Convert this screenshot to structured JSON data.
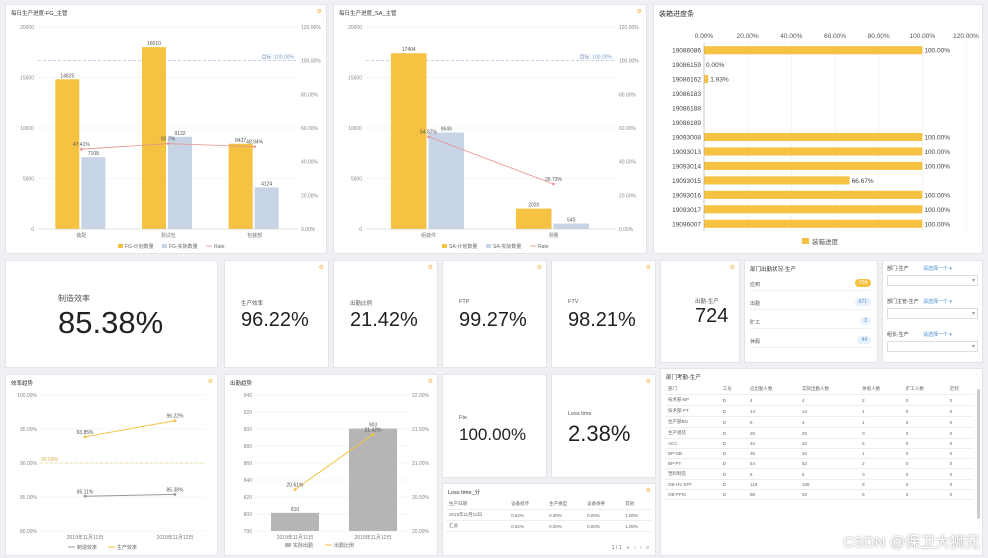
{
  "panels": {
    "fg": {
      "title": "每日生产进度-FG_主管"
    },
    "sa": {
      "title": "每日生产进度_SA_主管"
    },
    "progress": {
      "title": "装箱进度条"
    },
    "eff_trend": {
      "title": "效率趋势"
    },
    "rate_trend": {
      "title": "出勤趋势"
    },
    "loss": {
      "title": "Loss time_分"
    },
    "dept_att": {
      "title": "部门出勤状况-生产"
    },
    "dept_attend_table": {
      "title": "部门考勤-生产"
    }
  },
  "kpis": {
    "main": {
      "label": "制造效率",
      "value": "85.38%"
    },
    "prod_eff": {
      "label": "生产效率",
      "value": "96.22%"
    },
    "attendance": {
      "label": "出勤比例",
      "value": "21.42%"
    },
    "ftp": {
      "label": "FTP",
      "value": "99.27%"
    },
    "ftv": {
      "label": "FTV",
      "value": "98.21%"
    },
    "hours": {
      "label": "出勤-生产",
      "value": "724"
    },
    "fte": {
      "label": "Fte",
      "value": "100.00%"
    },
    "loss_time": {
      "label": "Loss time",
      "value": "2.38%"
    }
  },
  "dept_status": {
    "rows": [
      {
        "label": "应到",
        "value": "724"
      },
      {
        "label": "出勤",
        "value": "671"
      },
      {
        "label": "旷工",
        "value": "3"
      },
      {
        "label": "休假",
        "value": "44"
      }
    ]
  },
  "filters": [
    {
      "label": "部门-生产",
      "selected": "请选择一个 ▾"
    },
    {
      "label": "部门主管-生产",
      "selected": "请选择一个 ▾"
    },
    {
      "label": "组长-生产",
      "selected": "请选择一个 ▾"
    }
  ],
  "dept_table": {
    "headers": [
      "部门",
      "工号",
      "应出勤人数",
      "实际出勤人数",
      "休假人数",
      "旷工人数",
      "迟到"
    ],
    "rows": [
      [
        "技术部-BP",
        "D",
        "4",
        "4",
        "2",
        "0",
        "0"
      ],
      [
        "技术部-PT",
        "D",
        "14",
        "14",
        "1",
        "0",
        "0"
      ],
      [
        "生产部BN",
        "D",
        "5",
        "4",
        "1",
        "0",
        "0"
      ],
      [
        "生产组装",
        "D",
        "20",
        "20",
        "0",
        "0",
        "0"
      ],
      [
        "ACC",
        "D",
        "34",
        "32",
        "2",
        "0",
        "0"
      ],
      [
        "BP-OB",
        "D",
        "35",
        "34",
        "1",
        "0",
        "0"
      ],
      [
        "BP-PT",
        "D",
        "54",
        "52",
        "2",
        "0",
        "0"
      ],
      [
        "塑料制造",
        "D",
        "5",
        "5",
        "0",
        "0",
        "0"
      ],
      [
        "OB-HV EFF",
        "D",
        "116",
        "108",
        "8",
        "0",
        "0"
      ],
      [
        "OB-PFIC",
        "D",
        "98",
        "93",
        "5",
        "0",
        "0"
      ]
    ]
  },
  "loss_table": {
    "headers": [
      "生产日期",
      "设备损坏",
      "生产换型",
      "设备保养",
      "其他"
    ],
    "rows": [
      [
        "2019年11月12日",
        "0.62%",
        "0.00%",
        "0.00%",
        "1.00%"
      ],
      [
        "汇总",
        "0.62%",
        "0.00%",
        "0.00%",
        "1.00%"
      ]
    ],
    "pager": "1 / 1"
  },
  "watermark": "CSDN @保卫大狮兄",
  "chart_data": [
    {
      "id": "fg",
      "type": "bar",
      "categories": [
        "装配",
        "测试包",
        "包装部"
      ],
      "series": [
        {
          "name": "FG-计划数量",
          "values": [
            14825,
            18010,
            8437
          ],
          "color": "#f5c242"
        },
        {
          "name": "FG-实际数量",
          "values": [
            7108,
            9132,
            4124
          ],
          "color": "#c6d4e6"
        }
      ],
      "rate": {
        "name": "Rate",
        "values": [
          47.41,
          50.7,
          48.94
        ],
        "labels": [
          "47.41%",
          "50.7%",
          "48.94%"
        ]
      },
      "ylim": [
        0,
        20000
      ],
      "yticks": [
        "0",
        "5000",
        "10000",
        "15000",
        "20000"
      ],
      "y2ticks": [
        "0.00%",
        "20.00%",
        "40.00%",
        "60.00%",
        "80.00%",
        "100.00%",
        "120.00%"
      ],
      "target_label": "目标: 100.00%"
    },
    {
      "id": "sa",
      "type": "bar",
      "categories": [
        "组装件",
        "测量"
      ],
      "series": [
        {
          "name": "SA-计划数量",
          "values": [
            17404,
            2020
          ],
          "color": "#f5c242"
        },
        {
          "name": "SA-实际数量",
          "values": [
            9549,
            540
          ],
          "color": "#c6d4e6"
        }
      ],
      "rate": {
        "name": "Rate",
        "values": [
          54.87,
          26.73
        ],
        "labels": [
          "54.87%",
          "26.73%"
        ]
      },
      "ylim": [
        0,
        20000
      ],
      "yticks": [
        "0",
        "5000",
        "10000",
        "15000",
        "20000"
      ],
      "y2ticks": [
        "0.00%",
        "20.00%",
        "40.00%",
        "60.00%",
        "80.00%",
        "100.00%",
        "120.00%"
      ],
      "target_label": "目标: 100.00%"
    },
    {
      "id": "progress",
      "type": "bar",
      "orientation": "horizontal",
      "categories": [
        "19086086",
        "19086159",
        "19086162",
        "19086183",
        "19086188",
        "19086189",
        "19093008",
        "19093013",
        "19093014",
        "19093015",
        "19093016",
        "19093017",
        "19096007"
      ],
      "values": [
        100,
        0,
        1.93,
        0,
        0,
        0,
        100,
        100,
        100,
        66.67,
        100,
        100,
        100
      ],
      "labels": [
        "100.00%",
        "0.00%",
        "1.93%",
        "",
        "",
        "",
        "100.00%",
        "100.00%",
        "100.00%",
        "66.67%",
        "100.00%",
        "100.00%",
        "100.00%"
      ],
      "xticks": [
        "0.00%",
        "20.00%",
        "40.00%",
        "60.00%",
        "80.00%",
        "100.00%",
        "120.00%"
      ],
      "xlim": [
        0,
        120
      ],
      "legend": "装箱进度"
    },
    {
      "id": "eff_trend",
      "type": "line",
      "categories": [
        "2019年11月11日",
        "2019年11月12日"
      ],
      "series": [
        {
          "name": "制造效率",
          "values": [
            85.11,
            85.38
          ],
          "labels": [
            "85.11%",
            "85.38%"
          ],
          "color": "#999999"
        },
        {
          "name": "生产效率",
          "values": [
            93.85,
            96.22
          ],
          "labels": [
            "93.85%",
            "96.22%"
          ],
          "color": "#f5c242"
        }
      ],
      "target": {
        "value": 90,
        "label": "90.00%"
      },
      "yticks": [
        "80.00%",
        "85.00%",
        "90.00%",
        "95.00%",
        "100.00%"
      ],
      "ylim": [
        80,
        100
      ]
    },
    {
      "id": "rate_trend",
      "type": "bar",
      "categories": [
        "2019年11月11日",
        "2019年11月12日"
      ],
      "series": [
        {
          "name": "实际出勤",
          "values": [
            810,
            903
          ],
          "labels": [
            "810",
            "903"
          ],
          "color": "#b5b5b5"
        }
      ],
      "rate": {
        "name": "出勤比例",
        "values": [
          20.61,
          21.42
        ],
        "labels": [
          "20.61%",
          "21.42%"
        ]
      },
      "ylim": [
        790,
        940
      ],
      "yticks": [
        "790",
        "800",
        "820",
        "840",
        "860",
        "880",
        "900",
        "920",
        "940"
      ],
      "y2ticks": [
        "20.00%",
        "20.50%",
        "21.00%",
        "21.50%",
        "22.00%"
      ]
    }
  ]
}
